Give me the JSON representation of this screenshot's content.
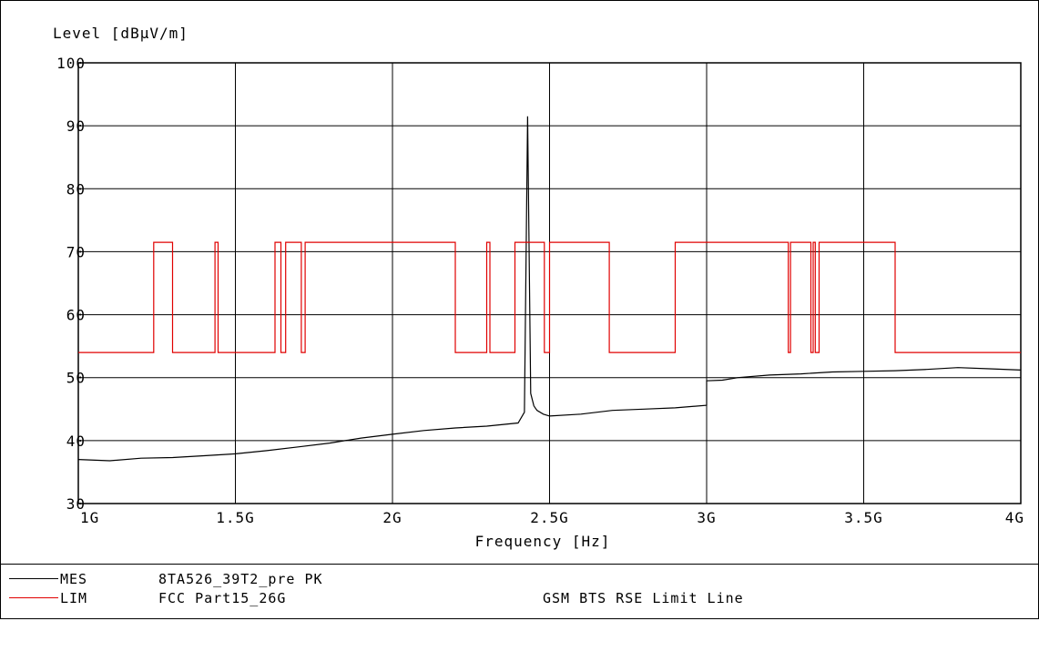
{
  "chart_data": {
    "type": "line",
    "ylabel": "Level  [dBµV/m]",
    "xlabel": "Frequency  [Hz]",
    "ylim": [
      30,
      100
    ],
    "xlim": [
      1000000000,
      4000000000
    ],
    "y_ticks": [
      "30",
      "40",
      "50",
      "60",
      "70",
      "80",
      "90",
      "100"
    ],
    "x_ticks": [
      "1G",
      "1.5G",
      "2G",
      "2.5G",
      "3G",
      "3.5G",
      "4G"
    ],
    "x_tick_values": [
      1000000000,
      1500000000,
      2000000000,
      2500000000,
      3000000000,
      3500000000,
      4000000000
    ],
    "y_tick_values": [
      30,
      40,
      50,
      60,
      70,
      80,
      90,
      100
    ],
    "grid": true,
    "series": [
      {
        "name": "8TA526_39T2_pre PK",
        "role": "MES",
        "color": "#000000",
        "x": [
          1000000000,
          1100000000,
          1200000000,
          1300000000,
          1400000000,
          1500000000,
          1600000000,
          1700000000,
          1800000000,
          1900000000,
          2000000000,
          2100000000,
          2200000000,
          2300000000,
          2400000000,
          2420000000,
          2430000000,
          2440000000,
          2450000000,
          2460000000,
          2480000000,
          2500000000,
          2600000000,
          2700000000,
          2800000000,
          2900000000,
          3000000000,
          3000000001,
          3050000000,
          3100000000,
          3200000000,
          3300000000,
          3400000000,
          3500000000,
          3600000000,
          3700000000,
          3800000000,
          3900000000,
          4000000000
        ],
        "y": [
          37.0,
          36.8,
          37.2,
          37.3,
          37.6,
          37.9,
          38.4,
          39.0,
          39.6,
          40.4,
          41.0,
          41.6,
          42.0,
          42.3,
          42.8,
          44.5,
          91.5,
          47.5,
          45.5,
          44.8,
          44.2,
          43.9,
          44.2,
          44.8,
          45.0,
          45.2,
          45.6,
          49.5,
          49.6,
          50.0,
          50.4,
          50.6,
          50.9,
          51.0,
          51.1,
          51.3,
          51.6,
          51.4,
          51.2
        ]
      },
      {
        "name": "FCC Part15_26G",
        "role": "LIM",
        "annotation": "GSM BTS RSE Limit Line",
        "color": "#e00000",
        "x": [
          1000000000,
          1240000000,
          1240000000,
          1300000000,
          1300000000,
          1435000000,
          1435000000,
          1445000000,
          1445000000,
          1626000000,
          1626000000,
          1645000000,
          1645000000,
          1660000000,
          1660000000,
          1710000000,
          1710000000,
          1722000000,
          1722000000,
          2200000000,
          2200000000,
          2300000000,
          2300000000,
          2310000000,
          2310000000,
          2390000000,
          2390000000,
          2483500000,
          2483500000,
          2500000000,
          2500000000,
          2690000000,
          2690000000,
          2900000000,
          2900000000,
          3260000000,
          3260000000,
          3267000000,
          3267000000,
          3332000000,
          3332000000,
          3339000000,
          3339000000,
          3345800000,
          3345800000,
          3358000000,
          3358000000,
          3600000000,
          3600000000,
          4000000000
        ],
        "y": [
          54,
          54,
          71.5,
          71.5,
          54,
          54,
          71.5,
          71.5,
          54,
          54,
          71.5,
          71.5,
          54,
          54,
          71.5,
          71.5,
          54,
          54,
          71.5,
          71.5,
          54,
          54,
          71.5,
          71.5,
          54,
          54,
          71.5,
          71.5,
          54,
          54,
          71.5,
          71.5,
          54,
          54,
          71.5,
          71.5,
          54,
          54,
          71.5,
          71.5,
          54,
          54,
          71.5,
          71.5,
          54,
          54,
          71.5,
          71.5,
          54,
          54
        ]
      }
    ]
  },
  "legend": {
    "mes_label": "MES",
    "mes_name": "8TA526_39T2_pre PK",
    "lim_label": "LIM",
    "lim_name": "FCC Part15_26G",
    "lim_note": "GSM BTS RSE Limit Line"
  }
}
